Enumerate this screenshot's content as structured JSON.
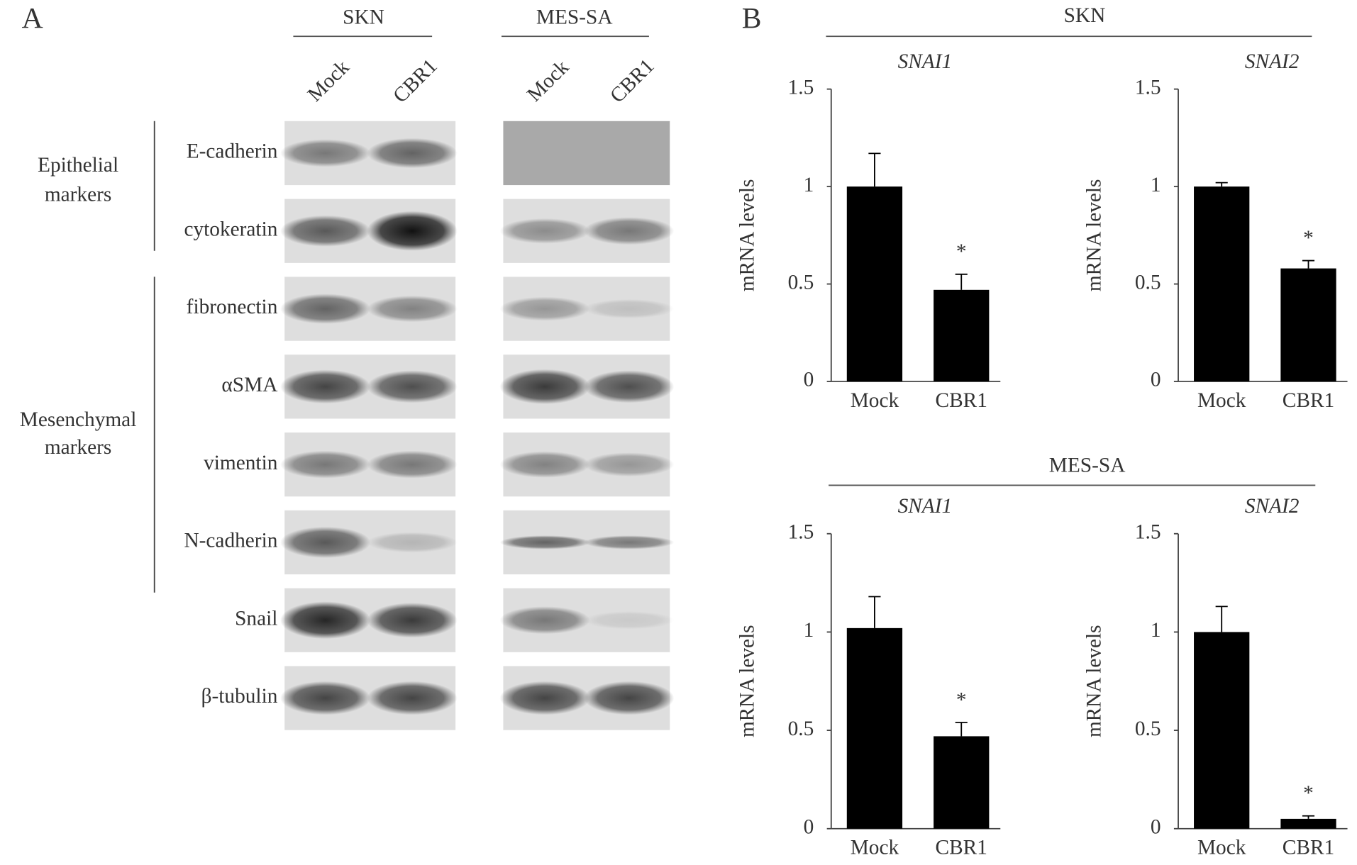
{
  "panel_a": {
    "label": "A",
    "cell_lines": [
      {
        "name": "SKN",
        "lanes": [
          "Mock",
          "CBR1"
        ]
      },
      {
        "name": "MES-SA",
        "lanes": [
          "Mock",
          "CBR1"
        ]
      }
    ],
    "proteins": [
      "E-cadherin",
      "cytokeratin",
      "fibronectin",
      "αSMA",
      "vimentin",
      "N-cadherin",
      "Snail",
      "β-tubulin"
    ],
    "groups": [
      [
        "Epithelial",
        "markers"
      ],
      [
        "Mesenchymal",
        "markers"
      ]
    ]
  },
  "panel_b": {
    "label": "B",
    "groups": [
      "SKN",
      "MES-SA"
    ]
  },
  "chart_data": [
    {
      "type": "bar",
      "title": "SNAI1",
      "ylabel": "mRNA levels",
      "categories": [
        "Mock",
        "CBR1"
      ],
      "values": [
        1.0,
        0.47
      ],
      "errors": [
        0.17,
        0.08
      ],
      "color": "#000000",
      "ylim": [
        0,
        1.5
      ],
      "yticks": [
        0,
        0.5,
        1,
        1.5
      ],
      "annotations": [
        {
          "category": "CBR1",
          "text": "*"
        }
      ]
    },
    {
      "type": "bar",
      "title": "SNAI2",
      "ylabel": "mRNA levels",
      "categories": [
        "Mock",
        "CBR1"
      ],
      "values": [
        1.0,
        0.58
      ],
      "errors": [
        0.02,
        0.04
      ],
      "color": "#000000",
      "ylim": [
        0,
        1.5
      ],
      "yticks": [
        0,
        0.5,
        1,
        1.5
      ],
      "annotations": [
        {
          "category": "CBR1",
          "text": "*"
        }
      ]
    },
    {
      "type": "bar",
      "title": "SNAI1",
      "ylabel": "mRNA levels",
      "categories": [
        "Mock",
        "CBR1"
      ],
      "values": [
        1.02,
        0.47
      ],
      "errors": [
        0.16,
        0.07
      ],
      "color": "#000000",
      "ylim": [
        0,
        1.5
      ],
      "yticks": [
        0,
        0.5,
        1,
        1.5
      ],
      "annotations": [
        {
          "category": "CBR1",
          "text": "*"
        }
      ]
    },
    {
      "type": "bar",
      "title": "SNAI2",
      "ylabel": "mRNA levels",
      "categories": [
        "Mock",
        "CBR1"
      ],
      "values": [
        1.0,
        0.05
      ],
      "errors": [
        0.13,
        0.015
      ],
      "color": "#000000",
      "ylim": [
        0,
        1.5
      ],
      "yticks": [
        0,
        0.5,
        1,
        1.5
      ],
      "annotations": [
        {
          "category": "CBR1",
          "text": "*"
        }
      ]
    }
  ]
}
